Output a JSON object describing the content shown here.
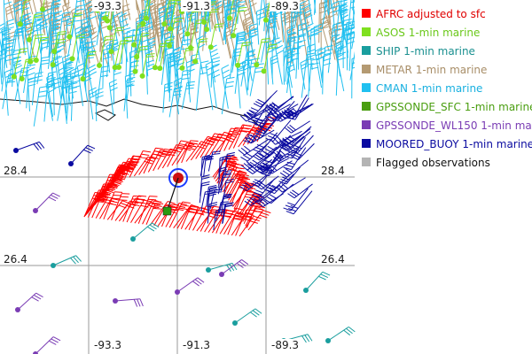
{
  "map": {
    "grid": {
      "lon_labels": [
        "-93.3",
        "-91.3",
        "-89.3"
      ],
      "lat_labels": [
        "28.4",
        "26.4"
      ]
    }
  },
  "legend": [
    {
      "label": "AFRC adjusted to sfc",
      "color": "#ff0000"
    },
    {
      "label": "ASOS 1-min marine",
      "color": "#7fe01f"
    },
    {
      "label": "SHIP 1-min marine",
      "color": "#1a9e9e"
    },
    {
      "label": "METAR 1-min marine",
      "color": "#b49a72"
    },
    {
      "label": "CMAN 1-min marine",
      "color": "#20c0f0"
    },
    {
      "label": "GPSSONDE_SFC 1-min marine",
      "color": "#4a9e10"
    },
    {
      "label": "GPSSONDE_WL150 1-min marine",
      "color": "#7a3cb4"
    },
    {
      "label": "MOORED_BUOY 1-min marine",
      "color": "#0a0aa0"
    },
    {
      "label": "Flagged observations",
      "color": "#b4b4b4"
    }
  ]
}
